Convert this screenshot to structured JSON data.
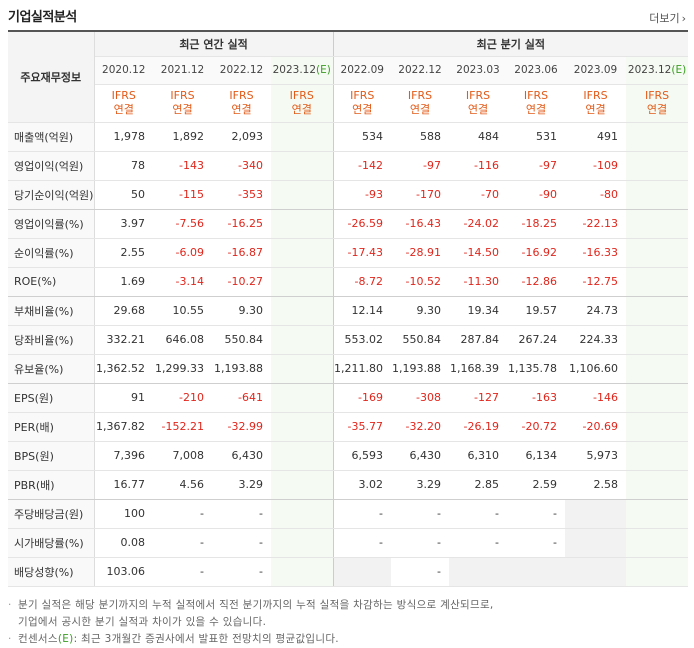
{
  "title": "기업실적분석",
  "more_label": "더보기",
  "header": {
    "label_col": "주요재무정보",
    "annual_group": "최근 연간 실적",
    "quarter_group": "최근 분기 실적",
    "annual_periods": [
      "2020.12",
      "2021.12",
      "2022.12",
      "2023.12"
    ],
    "annual_estimate_suffix": "(E)",
    "quarter_periods": [
      "2022.09",
      "2022.12",
      "2023.03",
      "2023.06",
      "2023.09",
      "2023.12"
    ],
    "quarter_estimate_suffix": "(E)",
    "ifrs_top": "IFRS",
    "ifrs_bottom": "연결"
  },
  "rows": [
    {
      "label": "매출액(억원)",
      "annual": [
        "1,978",
        "1,892",
        "2,093",
        ""
      ],
      "quarter": [
        "534",
        "588",
        "484",
        "531",
        "491",
        ""
      ]
    },
    {
      "label": "영업이익(억원)",
      "annual": [
        "78",
        "-143",
        "-340",
        ""
      ],
      "quarter": [
        "-142",
        "-97",
        "-116",
        "-97",
        "-109",
        ""
      ]
    },
    {
      "label": "당기순이익(억원)",
      "annual": [
        "50",
        "-115",
        "-353",
        ""
      ],
      "quarter": [
        "-93",
        "-170",
        "-70",
        "-90",
        "-80",
        ""
      ]
    },
    {
      "label": "영업이익률(%)",
      "annual": [
        "3.97",
        "-7.56",
        "-16.25",
        ""
      ],
      "quarter": [
        "-26.59",
        "-16.43",
        "-24.02",
        "-18.25",
        "-22.13",
        ""
      ]
    },
    {
      "label": "순이익률(%)",
      "annual": [
        "2.55",
        "-6.09",
        "-16.87",
        ""
      ],
      "quarter": [
        "-17.43",
        "-28.91",
        "-14.50",
        "-16.92",
        "-16.33",
        ""
      ]
    },
    {
      "label": "ROE(%)",
      "annual": [
        "1.69",
        "-3.14",
        "-10.27",
        ""
      ],
      "quarter": [
        "-8.72",
        "-10.52",
        "-11.30",
        "-12.86",
        "-12.75",
        ""
      ]
    },
    {
      "label": "부채비율(%)",
      "annual": [
        "29.68",
        "10.55",
        "9.30",
        ""
      ],
      "quarter": [
        "12.14",
        "9.30",
        "19.34",
        "19.57",
        "24.73",
        ""
      ]
    },
    {
      "label": "당좌비율(%)",
      "annual": [
        "332.21",
        "646.08",
        "550.84",
        ""
      ],
      "quarter": [
        "553.02",
        "550.84",
        "287.84",
        "267.24",
        "224.33",
        ""
      ]
    },
    {
      "label": "유보율(%)",
      "annual": [
        "1,362.52",
        "1,299.33",
        "1,193.88",
        ""
      ],
      "quarter": [
        "1,211.80",
        "1,193.88",
        "1,168.39",
        "1,135.78",
        "1,106.60",
        ""
      ]
    },
    {
      "label": "EPS(원)",
      "annual": [
        "91",
        "-210",
        "-641",
        ""
      ],
      "quarter": [
        "-169",
        "-308",
        "-127",
        "-163",
        "-146",
        ""
      ]
    },
    {
      "label": "PER(배)",
      "annual": [
        "1,367.82",
        "-152.21",
        "-32.99",
        ""
      ],
      "quarter": [
        "-35.77",
        "-32.20",
        "-26.19",
        "-20.72",
        "-20.69",
        ""
      ]
    },
    {
      "label": "BPS(원)",
      "annual": [
        "7,396",
        "7,008",
        "6,430",
        ""
      ],
      "quarter": [
        "6,593",
        "6,430",
        "6,310",
        "6,134",
        "5,973",
        ""
      ]
    },
    {
      "label": "PBR(배)",
      "annual": [
        "16.77",
        "4.56",
        "3.29",
        ""
      ],
      "quarter": [
        "3.02",
        "3.29",
        "2.85",
        "2.59",
        "2.58",
        ""
      ]
    },
    {
      "label": "주당배당금(원)",
      "annual": [
        "100",
        "-",
        "-",
        ""
      ],
      "quarter": [
        "-",
        "-",
        "-",
        "-",
        "",
        ""
      ]
    },
    {
      "label": "시가배당률(%)",
      "annual": [
        "0.08",
        "-",
        "-",
        ""
      ],
      "quarter": [
        "-",
        "-",
        "-",
        "-",
        "",
        ""
      ]
    },
    {
      "label": "배당성향(%)",
      "annual": [
        "103.06",
        "-",
        "-",
        ""
      ],
      "quarter": [
        "",
        "-",
        "",
        "",
        "",
        ""
      ]
    }
  ],
  "notes": {
    "line1": "분기 실적은 해당 분기까지의 누적 실적에서 직전 분기까지의 누적 실적을 차감하는 방식으로 계산되므로,",
    "line2": "기업에서 공시한 분기 실적과 차이가 있을 수 있습니다.",
    "line3_prefix": "컨센서스",
    "line3_mark": "(E)",
    "line3_suffix": ": 최근 3개월간 증권사에서 발표한 전망치의 평균값입니다."
  },
  "colors": {
    "negative": "#e0261c",
    "ifrs": "#e25a18",
    "estimate": "#3a9d23"
  }
}
